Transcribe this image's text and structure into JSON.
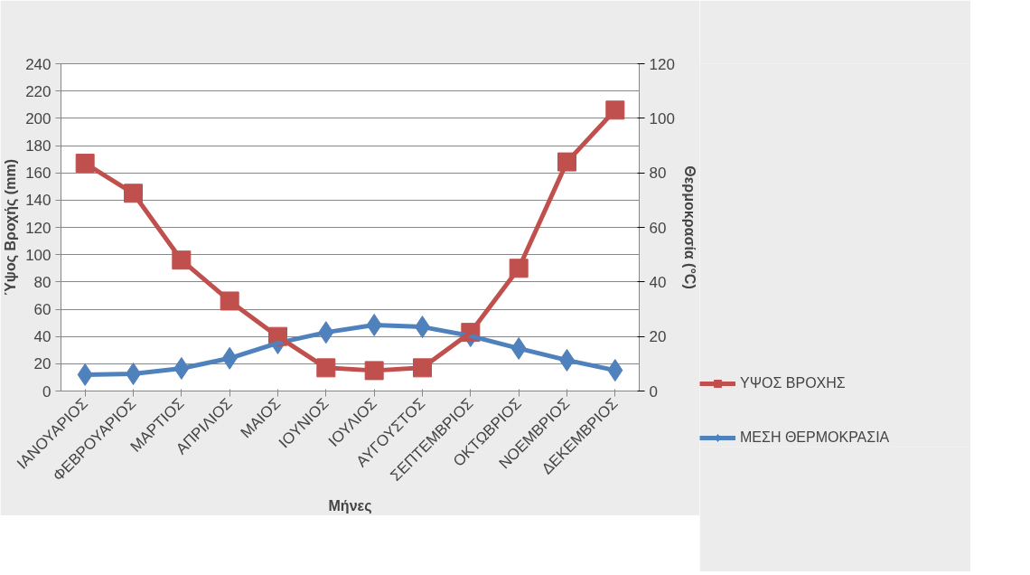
{
  "chart_data": {
    "type": "line",
    "xlabel": "Μήνες",
    "ylabel": "Ύψος Βροχής (mm)",
    "y2label": "Θερμοκρασία (°C)",
    "categories": [
      "ΙΑΝΟΥΑΡΙΟΣ",
      "ΦΕΒΡΟΥΑΡΙΟΣ",
      "ΜΑΡΤΙΟΣ",
      "ΑΠΡΙΛΙΟΣ",
      "ΜΑΙΟΣ",
      "ΙΟΥΝΙΟΣ",
      "ΙΟΥΛΙΟΣ",
      "ΑΥΓΟΥΣΤΟΣ",
      "ΣΕΠΤΕΜΒΡΙΟΣ",
      "ΟΚΤΩΒΡΙΟΣ",
      "ΝΟΕΜΒΡΙΟΣ",
      "ΔΕΚΕΜΒΡΙΟΣ"
    ],
    "series": [
      {
        "name": "ΥΨΟΣ ΒΡΟΧΗΣ",
        "color": "#c0504d",
        "marker": "square",
        "values": [
          167,
          145,
          96,
          66,
          40,
          17,
          15,
          17,
          43,
          90,
          168,
          206
        ]
      },
      {
        "name": "ΜΕΣΗ ΘΕΡΜΟΚΡΑΣΙΑ",
        "color": "#4f81bd",
        "marker": "diamond",
        "axis": "y2",
        "values": [
          6,
          6.3,
          8.3,
          12,
          17.6,
          21.5,
          24.2,
          23.5,
          20.2,
          15.6,
          11.3,
          7.6
        ]
      }
    ],
    "ylim": [
      0,
      240
    ],
    "yticks": [
      0,
      20,
      40,
      60,
      80,
      100,
      120,
      140,
      160,
      180,
      200,
      220,
      240
    ],
    "y2lim": [
      0,
      120
    ],
    "y2ticks": [
      0,
      20,
      40,
      60,
      80,
      100,
      120
    ],
    "grid": "y",
    "legend": "bottom right",
    "line_style": "solid"
  }
}
